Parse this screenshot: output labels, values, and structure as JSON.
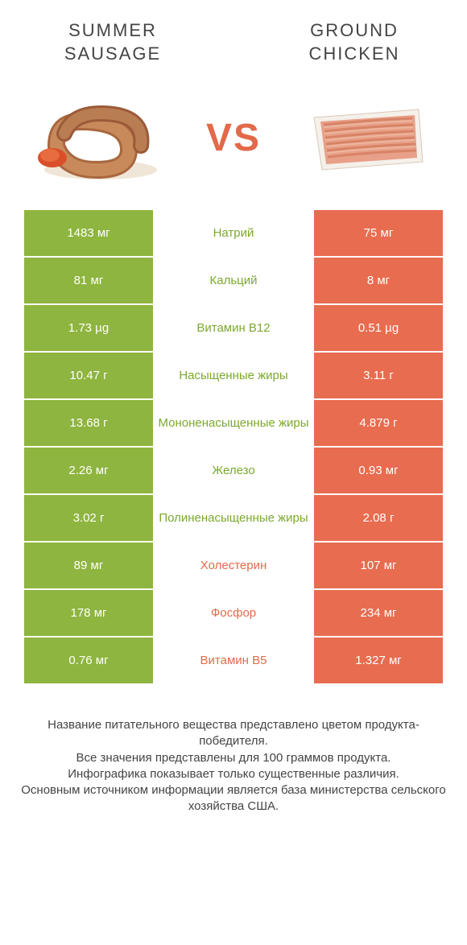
{
  "colors": {
    "green": "#8eb53f",
    "orange": "#e86c4f",
    "orange_text": "#e36b4b",
    "green_text": "#7ca82e",
    "white": "#ffffff",
    "title_gray": "#555555",
    "footer_gray": "#444444"
  },
  "header": {
    "left_title": "SUMMER\nSAUSAGE",
    "right_title": "GROUND\nCHICKEN",
    "vs": "VS"
  },
  "rows": [
    {
      "left": "1483 мг",
      "mid": "Натрий",
      "right": "75 мг",
      "winner": "left"
    },
    {
      "left": "81 мг",
      "mid": "Кальций",
      "right": "8 мг",
      "winner": "left"
    },
    {
      "left": "1.73 µg",
      "mid": "Витамин B12",
      "right": "0.51 µg",
      "winner": "left"
    },
    {
      "left": "10.47 г",
      "mid": "Насыщенные жиры",
      "right": "3.11 г",
      "winner": "left"
    },
    {
      "left": "13.68 г",
      "mid": "Мононенасыщенные жиры",
      "right": "4.879 г",
      "winner": "left"
    },
    {
      "left": "2.26 мг",
      "mid": "Железо",
      "right": "0.93 мг",
      "winner": "left"
    },
    {
      "left": "3.02 г",
      "mid": "Полиненасыщенные жиры",
      "right": "2.08 г",
      "winner": "left"
    },
    {
      "left": "89 мг",
      "mid": "Холестерин",
      "right": "107 мг",
      "winner": "right"
    },
    {
      "left": "178 мг",
      "mid": "Фосфор",
      "right": "234 мг",
      "winner": "right"
    },
    {
      "left": "0.76 мг",
      "mid": "Витамин B5",
      "right": "1.327 мг",
      "winner": "right"
    }
  ],
  "footer": {
    "line1": "Название питательного вещества представлено цветом продукта-победителя.",
    "line2": "Все значения представлены для 100 граммов продукта.",
    "line3": "Инфографика показывает только существенные различия.",
    "line4": "Основным источником информации является база министерства сельского хозяйства США."
  }
}
